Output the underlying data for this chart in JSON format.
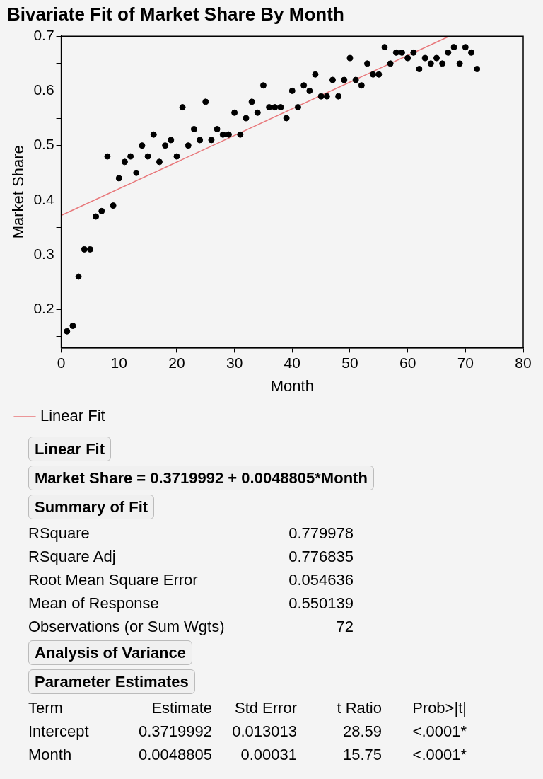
{
  "chart_data": {
    "type": "scatter",
    "title": "Bivariate Fit of Market Share By Month",
    "xlabel": "Month",
    "ylabel": "Market Share",
    "xlim": [
      0,
      80
    ],
    "xticks": [
      0,
      10,
      20,
      30,
      40,
      50,
      60,
      70,
      80
    ],
    "ylim": [
      0.13,
      0.7
    ],
    "yticks": [
      {
        "value": 0.15,
        "label": null
      },
      0.2,
      {
        "value": 0.25,
        "label": null
      },
      0.3,
      {
        "value": 0.35,
        "label": null
      },
      0.4,
      {
        "value": 0.45,
        "label": null
      },
      0.5,
      {
        "value": 0.55,
        "label": null
      },
      0.6,
      {
        "value": 0.65,
        "label": null
      },
      0.7
    ],
    "grid": false,
    "legend": "bottom left",
    "marker": "circle",
    "x": [
      1,
      2,
      3,
      4,
      5,
      6,
      7,
      8,
      9,
      10,
      11,
      12,
      13,
      14,
      15,
      16,
      17,
      18,
      19,
      20,
      21,
      22,
      23,
      24,
      25,
      26,
      27,
      28,
      29,
      30,
      31,
      32,
      33,
      34,
      35,
      36,
      37,
      38,
      39,
      40,
      41,
      42,
      43,
      44,
      45,
      46,
      47,
      48,
      49,
      50,
      51,
      52,
      53,
      54,
      55,
      56,
      57,
      58,
      59,
      60,
      61,
      62,
      63,
      64,
      65,
      66,
      67,
      68,
      69,
      70,
      71,
      72
    ],
    "series": [
      {
        "color": "#000000",
        "values": [
          0.16,
          0.17,
          0.26,
          0.31,
          0.31,
          0.37,
          0.38,
          0.48,
          0.39,
          0.44,
          0.47,
          0.48,
          0.45,
          0.5,
          0.48,
          0.52,
          0.47,
          0.5,
          0.51,
          0.48,
          0.57,
          0.5,
          0.53,
          0.51,
          0.58,
          0.51,
          0.53,
          0.52,
          0.52,
          0.56,
          0.52,
          0.55,
          0.58,
          0.56,
          0.61,
          0.57,
          0.57,
          0.57,
          0.55,
          0.6,
          0.57,
          0.61,
          0.6,
          0.63,
          0.59,
          0.59,
          0.62,
          0.59,
          0.62,
          0.66,
          0.62,
          0.61,
          0.65,
          0.63,
          0.63,
          0.68,
          0.65,
          0.67,
          0.67,
          0.66,
          0.67,
          0.64,
          0.66,
          0.65,
          0.66,
          0.65,
          0.67,
          0.68,
          0.65,
          0.68,
          0.67,
          0.64
        ]
      },
      {
        "type": "line",
        "name": "Linear Fit",
        "color": "#e8777a",
        "x": [
          0,
          67
        ],
        "values": [
          0.372,
          0.699
        ],
        "marker": "none",
        "line_style": "solid"
      }
    ],
    "annotations": [
      "Linear Fit",
      "Market Share = 0.3719992 + 0.0048805*Month",
      "Summary of Fit",
      "RSquare\t0.779978",
      "RSquare Adj\t0.776835",
      "Root Mean Square Error\t0.054636",
      "Mean of Response\t0.550139",
      "Observations (or Sum Wgts)\t72",
      "Analysis of Variance",
      "Parameter Estimates",
      "Term\tEstimate\tStd Error\tt Ratio\tProb>|t|",
      "Intercept\t0.3719992\t0.013013\t28.59\t<.0001*",
      "Month\t0.0048805\t0.00031\t15.75\t<.0001*"
    ]
  }
}
